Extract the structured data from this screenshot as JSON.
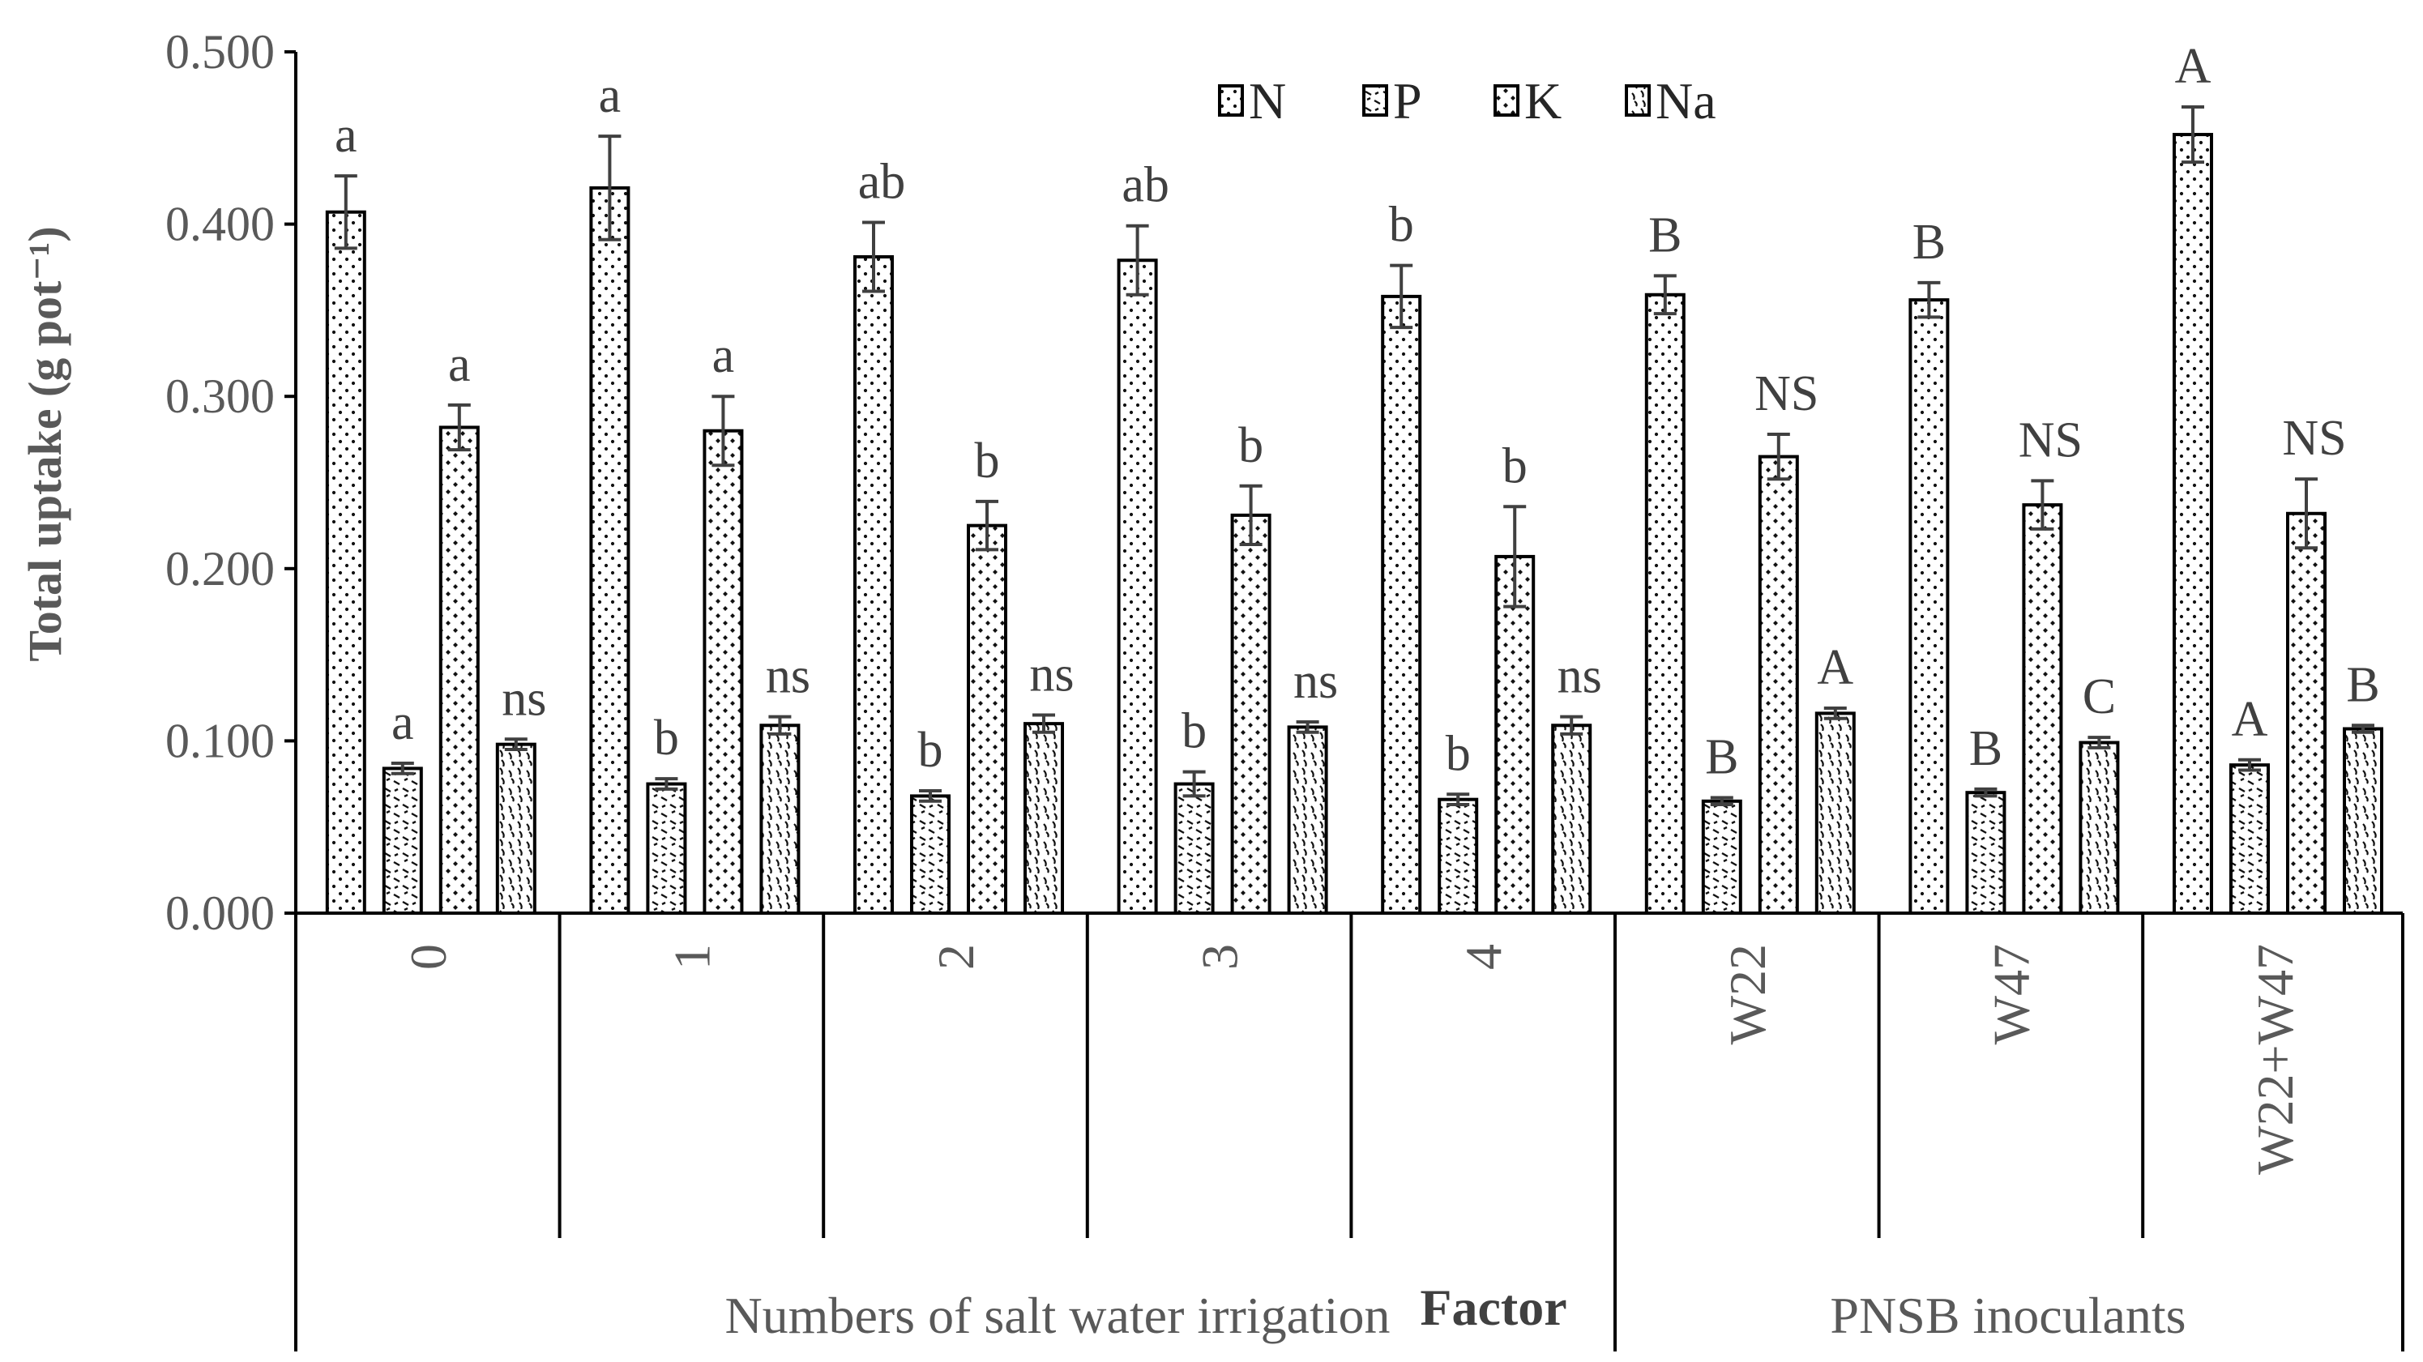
{
  "chart_data": {
    "type": "bar",
    "ylabel": "Total uptake (g pot⁻¹)",
    "ylim": [
      0,
      0.5
    ],
    "yticks": [
      "0.000",
      "0.100",
      "0.200",
      "0.300",
      "0.400",
      "0.500"
    ],
    "legend": {
      "position": "top-center",
      "entries": [
        "N",
        "P",
        "K",
        "Na"
      ]
    },
    "categories": [
      "0",
      "1",
      "2",
      "3",
      "4",
      "W22",
      "W47",
      "W22+W47"
    ],
    "groups": [
      {
        "label": "Numbers of salt water irrigation",
        "categories": [
          "0",
          "1",
          "2",
          "3",
          "4"
        ]
      },
      {
        "label": "PNSB inoculants",
        "categories": [
          "W22",
          "W47",
          "W22+W47"
        ]
      }
    ],
    "factor_label": "Factor",
    "series": [
      {
        "name": "N",
        "pattern": "dots",
        "values": [
          0.407,
          0.421,
          0.381,
          0.379,
          0.358,
          0.359,
          0.356,
          0.452
        ],
        "errors": [
          0.021,
          0.03,
          0.02,
          0.02,
          0.018,
          0.011,
          0.01,
          0.016
        ],
        "letters": [
          "a",
          "a",
          "ab",
          "ab",
          "b",
          "B",
          "B",
          "A"
        ]
      },
      {
        "name": "P",
        "pattern": "dashes",
        "values": [
          0.084,
          0.075,
          0.068,
          0.075,
          0.066,
          0.065,
          0.07,
          0.086
        ],
        "errors": [
          0.003,
          0.003,
          0.003,
          0.007,
          0.003,
          0.002,
          0.002,
          0.003
        ],
        "letters": [
          "a",
          "b",
          "b",
          "b",
          "b",
          "B",
          "B",
          "A"
        ]
      },
      {
        "name": "K",
        "pattern": "diamonds",
        "values": [
          0.282,
          0.28,
          0.225,
          0.231,
          0.207,
          0.265,
          0.237,
          0.232
        ],
        "errors": [
          0.013,
          0.02,
          0.014,
          0.017,
          0.029,
          0.013,
          0.014,
          0.02
        ],
        "letters": [
          "a",
          "a",
          "b",
          "b",
          "b",
          "NS",
          "NS",
          "NS"
        ]
      },
      {
        "name": "Na",
        "pattern": "waves",
        "values": [
          0.098,
          0.109,
          0.11,
          0.108,
          0.109,
          0.116,
          0.099,
          0.107
        ],
        "errors": [
          0.003,
          0.005,
          0.005,
          0.003,
          0.005,
          0.003,
          0.003,
          0.002
        ],
        "letters": [
          "ns",
          "ns",
          "ns",
          "ns",
          "ns",
          "A",
          "C",
          "B"
        ]
      }
    ]
  }
}
